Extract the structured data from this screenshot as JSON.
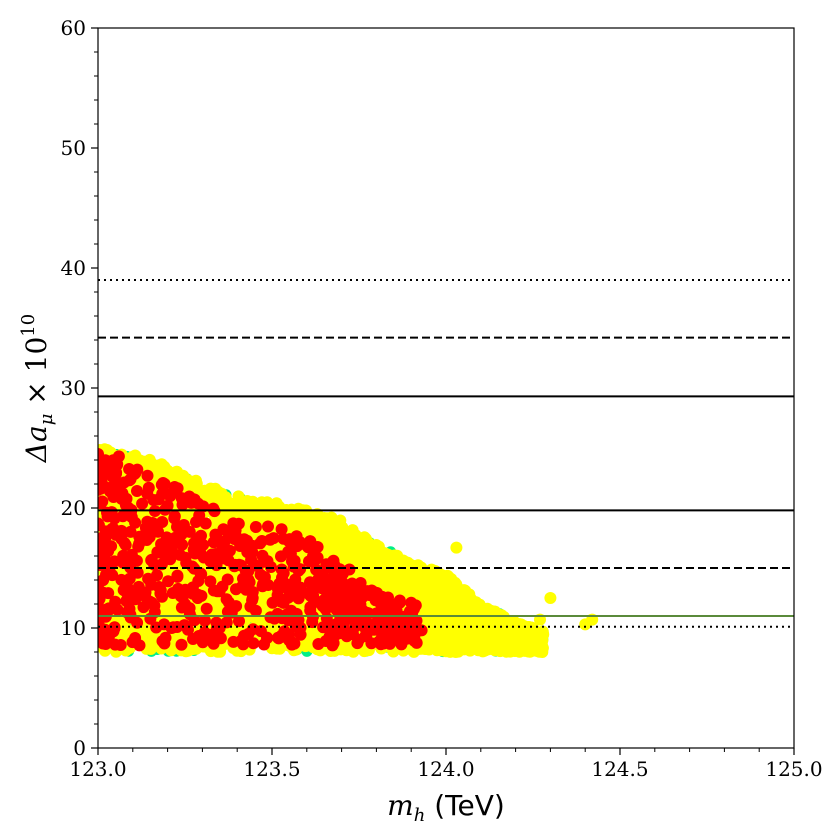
{
  "chart_data": {
    "type": "scatter",
    "title": "",
    "xlabel": {
      "var": "m",
      "sub": "h",
      "unit": "(TeV)"
    },
    "ylabel": {
      "text": "Δa",
      "sub": "μ",
      "times": "× 10",
      "sup": "10"
    },
    "xlim": [
      123.0,
      125.0
    ],
    "ylim": [
      0,
      60
    ],
    "xticks": [
      "123.0",
      "123.5",
      "124.0",
      "124.5",
      "125.0"
    ],
    "yticks": [
      "0",
      "10",
      "20",
      "30",
      "40",
      "50",
      "60"
    ],
    "grid": false,
    "colors": {
      "background_points": "#00ee88",
      "yellow_points": "#ffff00",
      "red_points": "#ff0000",
      "lines": "#000000",
      "green_line": "#5a8a3a"
    },
    "hlines": [
      {
        "y": 39.0,
        "style": "dotted"
      },
      {
        "y": 34.2,
        "style": "dashed"
      },
      {
        "y": 29.3,
        "style": "solid"
      },
      {
        "y": 19.8,
        "style": "solid"
      },
      {
        "y": 15.0,
        "style": "dashed"
      },
      {
        "y": 11.0,
        "style": "solid",
        "color": "green"
      },
      {
        "y": 10.1,
        "style": "dotted"
      }
    ],
    "series": [
      {
        "color": "yellow",
        "region_upper_envelope": {
          "x": [
            123.0,
            123.1,
            123.2,
            123.3,
            123.4,
            123.5,
            123.6,
            123.7,
            123.8,
            123.9,
            124.0,
            124.1,
            124.2,
            124.3
          ],
          "y": [
            25.0,
            24.5,
            23.5,
            22.0,
            21.0,
            20.5,
            19.8,
            19.0,
            17.0,
            15.5,
            14.5,
            12.0,
            10.5,
            9.5
          ]
        },
        "region_lower_bound": 8.0,
        "sample_points": [
          {
            "x": 124.03,
            "y": 16.7
          },
          {
            "x": 124.3,
            "y": 12.5
          },
          {
            "x": 124.27,
            "y": 10.7
          },
          {
            "x": 124.4,
            "y": 10.3
          },
          {
            "x": 124.42,
            "y": 10.7
          },
          {
            "x": 124.26,
            "y": 8.7
          }
        ]
      },
      {
        "color": "red",
        "region_upper_envelope": {
          "x": [
            123.0,
            123.1,
            123.2,
            123.3,
            123.4,
            123.5,
            123.6,
            123.7,
            123.8,
            123.9
          ],
          "y": [
            24.5,
            23.5,
            22.0,
            21.0,
            19.5,
            18.5,
            17.5,
            15.5,
            13.0,
            12.0
          ]
        },
        "region_lower_bound": 8.5,
        "sample_points": [
          {
            "x": 123.0,
            "y": 24.5
          },
          {
            "x": 123.06,
            "y": 24.3
          },
          {
            "x": 123.9,
            "y": 12.1
          },
          {
            "x": 123.83,
            "y": 10.0
          },
          {
            "x": 123.77,
            "y": 10.6
          },
          {
            "x": 123.72,
            "y": 13.3
          },
          {
            "x": 123.93,
            "y": 9.8
          },
          {
            "x": 123.0,
            "y": 9.0
          },
          {
            "x": 123.24,
            "y": 8.6
          }
        ]
      }
    ]
  }
}
